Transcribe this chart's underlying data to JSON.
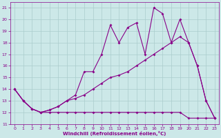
{
  "xlabel": "Windchill (Refroidissement éolien,°C)",
  "bg_color": "#cce8e8",
  "grid_color": "#aacccc",
  "line_color": "#880088",
  "xlim": [
    -0.5,
    23.5
  ],
  "ylim": [
    11,
    21.5
  ],
  "yticks": [
    11,
    12,
    13,
    14,
    15,
    16,
    17,
    18,
    19,
    20,
    21
  ],
  "xticks": [
    0,
    1,
    2,
    3,
    4,
    5,
    6,
    7,
    8,
    9,
    10,
    11,
    12,
    13,
    14,
    15,
    16,
    17,
    18,
    19,
    20,
    21,
    22,
    23
  ],
  "series_bottom_x": [
    0,
    1,
    2,
    3,
    4,
    5,
    6,
    7,
    8,
    9,
    10,
    11,
    12,
    13,
    14,
    15,
    16,
    17,
    18,
    19,
    20,
    21,
    22,
    23
  ],
  "series_bottom_y": [
    14,
    13,
    12.3,
    12,
    12,
    12,
    12,
    12,
    12,
    12,
    12,
    12,
    12,
    12,
    12,
    12,
    12,
    12,
    12,
    12,
    11.5,
    11.5,
    11.5,
    11.5
  ],
  "series_mid_x": [
    0,
    1,
    2,
    3,
    4,
    5,
    6,
    7,
    8,
    9,
    10,
    11,
    12,
    13,
    14,
    15,
    16,
    17,
    18,
    19,
    20,
    21,
    22,
    23
  ],
  "series_mid_y": [
    14,
    13,
    12.3,
    12,
    12.2,
    12.5,
    13,
    13.2,
    13.5,
    14,
    14.5,
    15,
    15.2,
    15.5,
    16,
    16.5,
    17,
    17.5,
    18,
    18.5,
    18,
    16,
    13,
    11.5
  ],
  "series_top_x": [
    0,
    1,
    2,
    3,
    4,
    5,
    6,
    7,
    8,
    9,
    10,
    11,
    12,
    13,
    14,
    15,
    16,
    17,
    18,
    19,
    20,
    21,
    22,
    23
  ],
  "series_top_y": [
    14,
    13,
    12.3,
    12,
    12.2,
    12.5,
    13,
    13.5,
    15.5,
    15.5,
    17,
    19.5,
    18,
    19.3,
    19.7,
    17,
    21,
    20.5,
    18,
    20,
    18,
    16,
    13,
    11.5
  ]
}
